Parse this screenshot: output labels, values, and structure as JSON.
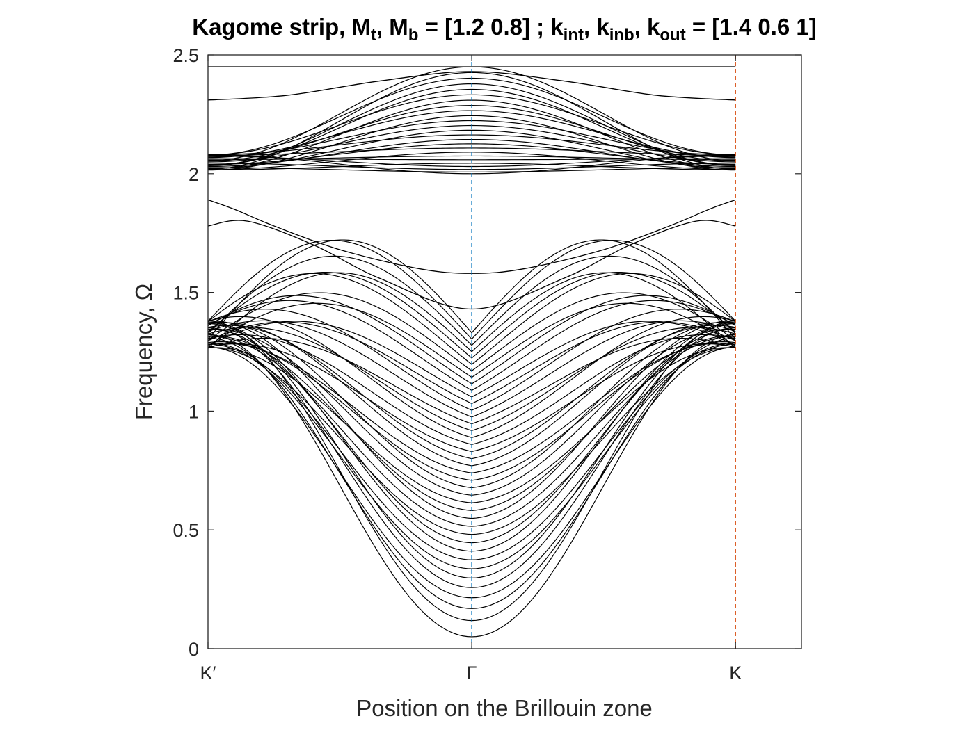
{
  "chart_data": {
    "type": "line",
    "title_parts": [
      {
        "t": "Kagome strip, M",
        "s": false
      },
      {
        "t": "t",
        "s": true
      },
      {
        "t": ", M",
        "s": false
      },
      {
        "t": "b",
        "s": true
      },
      {
        "t": " = [1.2 0.8] ; k",
        "s": false
      },
      {
        "t": "int",
        "s": true
      },
      {
        "t": ", k",
        "s": false
      },
      {
        "t": "inb",
        "s": true
      },
      {
        "t": ", k",
        "s": false
      },
      {
        "t": "out",
        "s": true
      },
      {
        "t": " = [1.4 0.6 1]",
        "s": false
      }
    ],
    "xlabel": "Position on the Brillouin zone",
    "ylabel": "Frequency, Ω",
    "xlim": [
      -1,
      1.25
    ],
    "ylim": [
      0,
      2.5
    ],
    "xticks": [
      {
        "value": -1,
        "label": "K′"
      },
      {
        "value": 0,
        "label": "Γ"
      },
      {
        "value": 1,
        "label": "K"
      }
    ],
    "yticks": [
      {
        "value": 0,
        "label": "0"
      },
      {
        "value": 0.5,
        "label": "0.5"
      },
      {
        "value": 1,
        "label": "1"
      },
      {
        "value": 1.5,
        "label": "1.5"
      },
      {
        "value": 2,
        "label": "2"
      },
      {
        "value": 2.5,
        "label": "2.5"
      }
    ],
    "vlines": [
      {
        "x": 0,
        "color": "#0072BD",
        "style": "dashed"
      },
      {
        "x": 1,
        "color": "#D95319",
        "style": "dashed"
      }
    ],
    "line_color": "#000000",
    "lower_bulk": {
      "count": 40,
      "gamma_min": 0.05,
      "gamma_max": 1.33,
      "k_min": 1.265,
      "k_max": 1.38,
      "peak_max": 1.57
    },
    "upper_bulk": {
      "count": 25,
      "gamma_min": 2.0,
      "gamma_max": 2.45,
      "k_min": 2.015,
      "k_max": 2.08
    },
    "edge_states": [
      {
        "name": "",
        "points": [
          [
            -1,
            2.45
          ],
          [
            1,
            2.45
          ]
        ]
      },
      {
        "name": "",
        "points": [
          [
            -1,
            2.31
          ],
          [
            -0.7,
            2.33
          ],
          [
            -0.35,
            2.39
          ],
          [
            0,
            2.43
          ],
          [
            0.35,
            2.39
          ],
          [
            0.7,
            2.33
          ],
          [
            1,
            2.31
          ]
        ]
      },
      {
        "name": "",
        "points": [
          [
            -1,
            1.78
          ],
          [
            -0.85,
            1.8
          ],
          [
            -0.6,
            1.7
          ],
          [
            -0.35,
            1.56
          ],
          [
            0,
            1.43
          ],
          [
            0.35,
            1.56
          ],
          [
            0.6,
            1.7
          ],
          [
            0.85,
            1.8
          ],
          [
            1,
            1.78
          ]
        ]
      },
      {
        "name": "",
        "points": [
          [
            -1,
            1.89
          ],
          [
            -0.9,
            1.85
          ],
          [
            -0.75,
            1.78
          ],
          [
            -0.5,
            1.68
          ],
          [
            -0.2,
            1.6
          ],
          [
            0,
            1.58
          ],
          [
            0.2,
            1.6
          ],
          [
            0.5,
            1.68
          ],
          [
            0.75,
            1.78
          ],
          [
            0.9,
            1.85
          ],
          [
            1,
            1.89
          ]
        ]
      }
    ]
  }
}
